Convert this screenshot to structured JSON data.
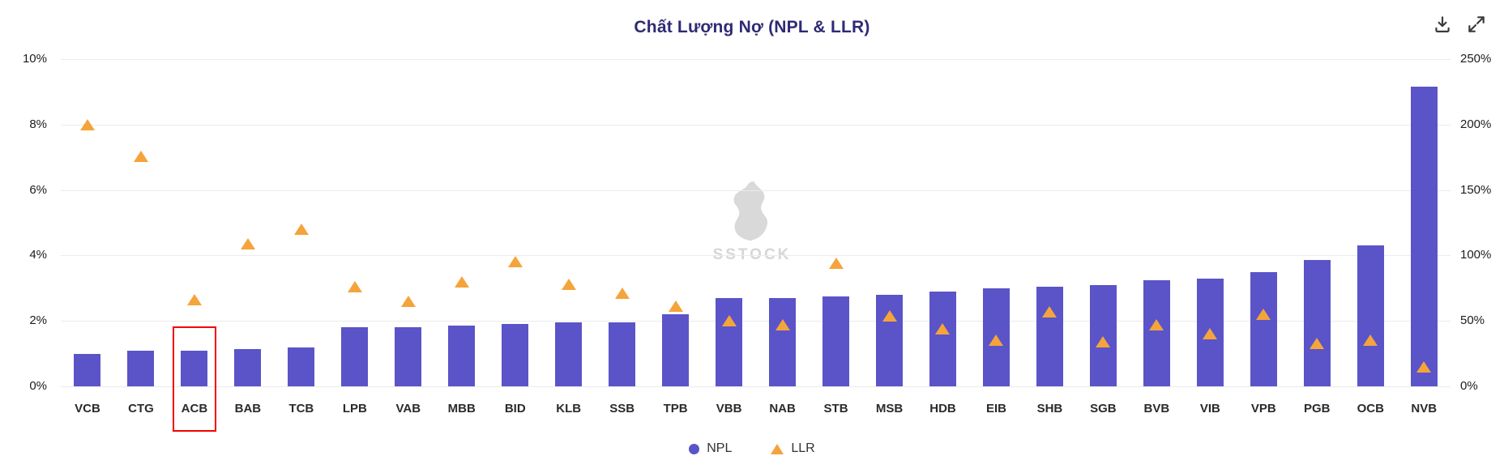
{
  "title": "Chất Lượng Nợ (NPL & LLR)",
  "watermark": "SSTOCK",
  "toolbar": {
    "download_label": "download",
    "expand_label": "expand"
  },
  "highlight": {
    "category": "ACB",
    "color": "#F40000"
  },
  "legend": [
    {
      "label": "NPL",
      "marker": "circle",
      "color": "#5A54C8"
    },
    {
      "label": "LLR",
      "marker": "triangle",
      "color": "#F4A43B"
    }
  ],
  "chart_data": {
    "type": "bar",
    "title": "Chất Lượng Nợ (NPL & LLR)",
    "categories": [
      "VCB",
      "CTG",
      "ACB",
      "BAB",
      "TCB",
      "LPB",
      "VAB",
      "MBB",
      "BID",
      "KLB",
      "SSB",
      "TPB",
      "VBB",
      "NAB",
      "STB",
      "MSB",
      "HDB",
      "EIB",
      "SHB",
      "SGB",
      "BVB",
      "VIB",
      "VPB",
      "PGB",
      "OCB",
      "NVB"
    ],
    "series": [
      {
        "name": "NPL",
        "type": "bar",
        "axis": "left",
        "unit": "%",
        "color": "#5A54C8",
        "values": [
          1.0,
          1.1,
          1.1,
          1.15,
          1.2,
          1.8,
          1.8,
          1.85,
          1.9,
          1.95,
          1.95,
          2.2,
          2.7,
          2.7,
          2.75,
          2.8,
          2.9,
          3.0,
          3.05,
          3.1,
          3.25,
          3.3,
          3.5,
          3.85,
          4.3,
          9.15
        ]
      },
      {
        "name": "LLR",
        "type": "scatter-triangle",
        "axis": "right",
        "unit": "%",
        "color": "#F4A43B",
        "values": [
          200,
          176,
          66,
          109,
          120,
          76,
          65,
          80,
          95,
          78,
          71,
          61,
          50,
          47,
          94,
          54,
          44,
          35,
          57,
          34,
          47,
          40,
          55,
          33,
          35,
          15
        ]
      }
    ],
    "left_axis": {
      "min": 0,
      "max": 10,
      "ticks": [
        "0%",
        "2%",
        "4%",
        "6%",
        "8%",
        "10%"
      ]
    },
    "right_axis": {
      "min": 0,
      "max": 250,
      "ticks": [
        "0%",
        "50%",
        "100%",
        "150%",
        "200%",
        "250%"
      ]
    },
    "grid": true,
    "legend_position": "bottom"
  }
}
